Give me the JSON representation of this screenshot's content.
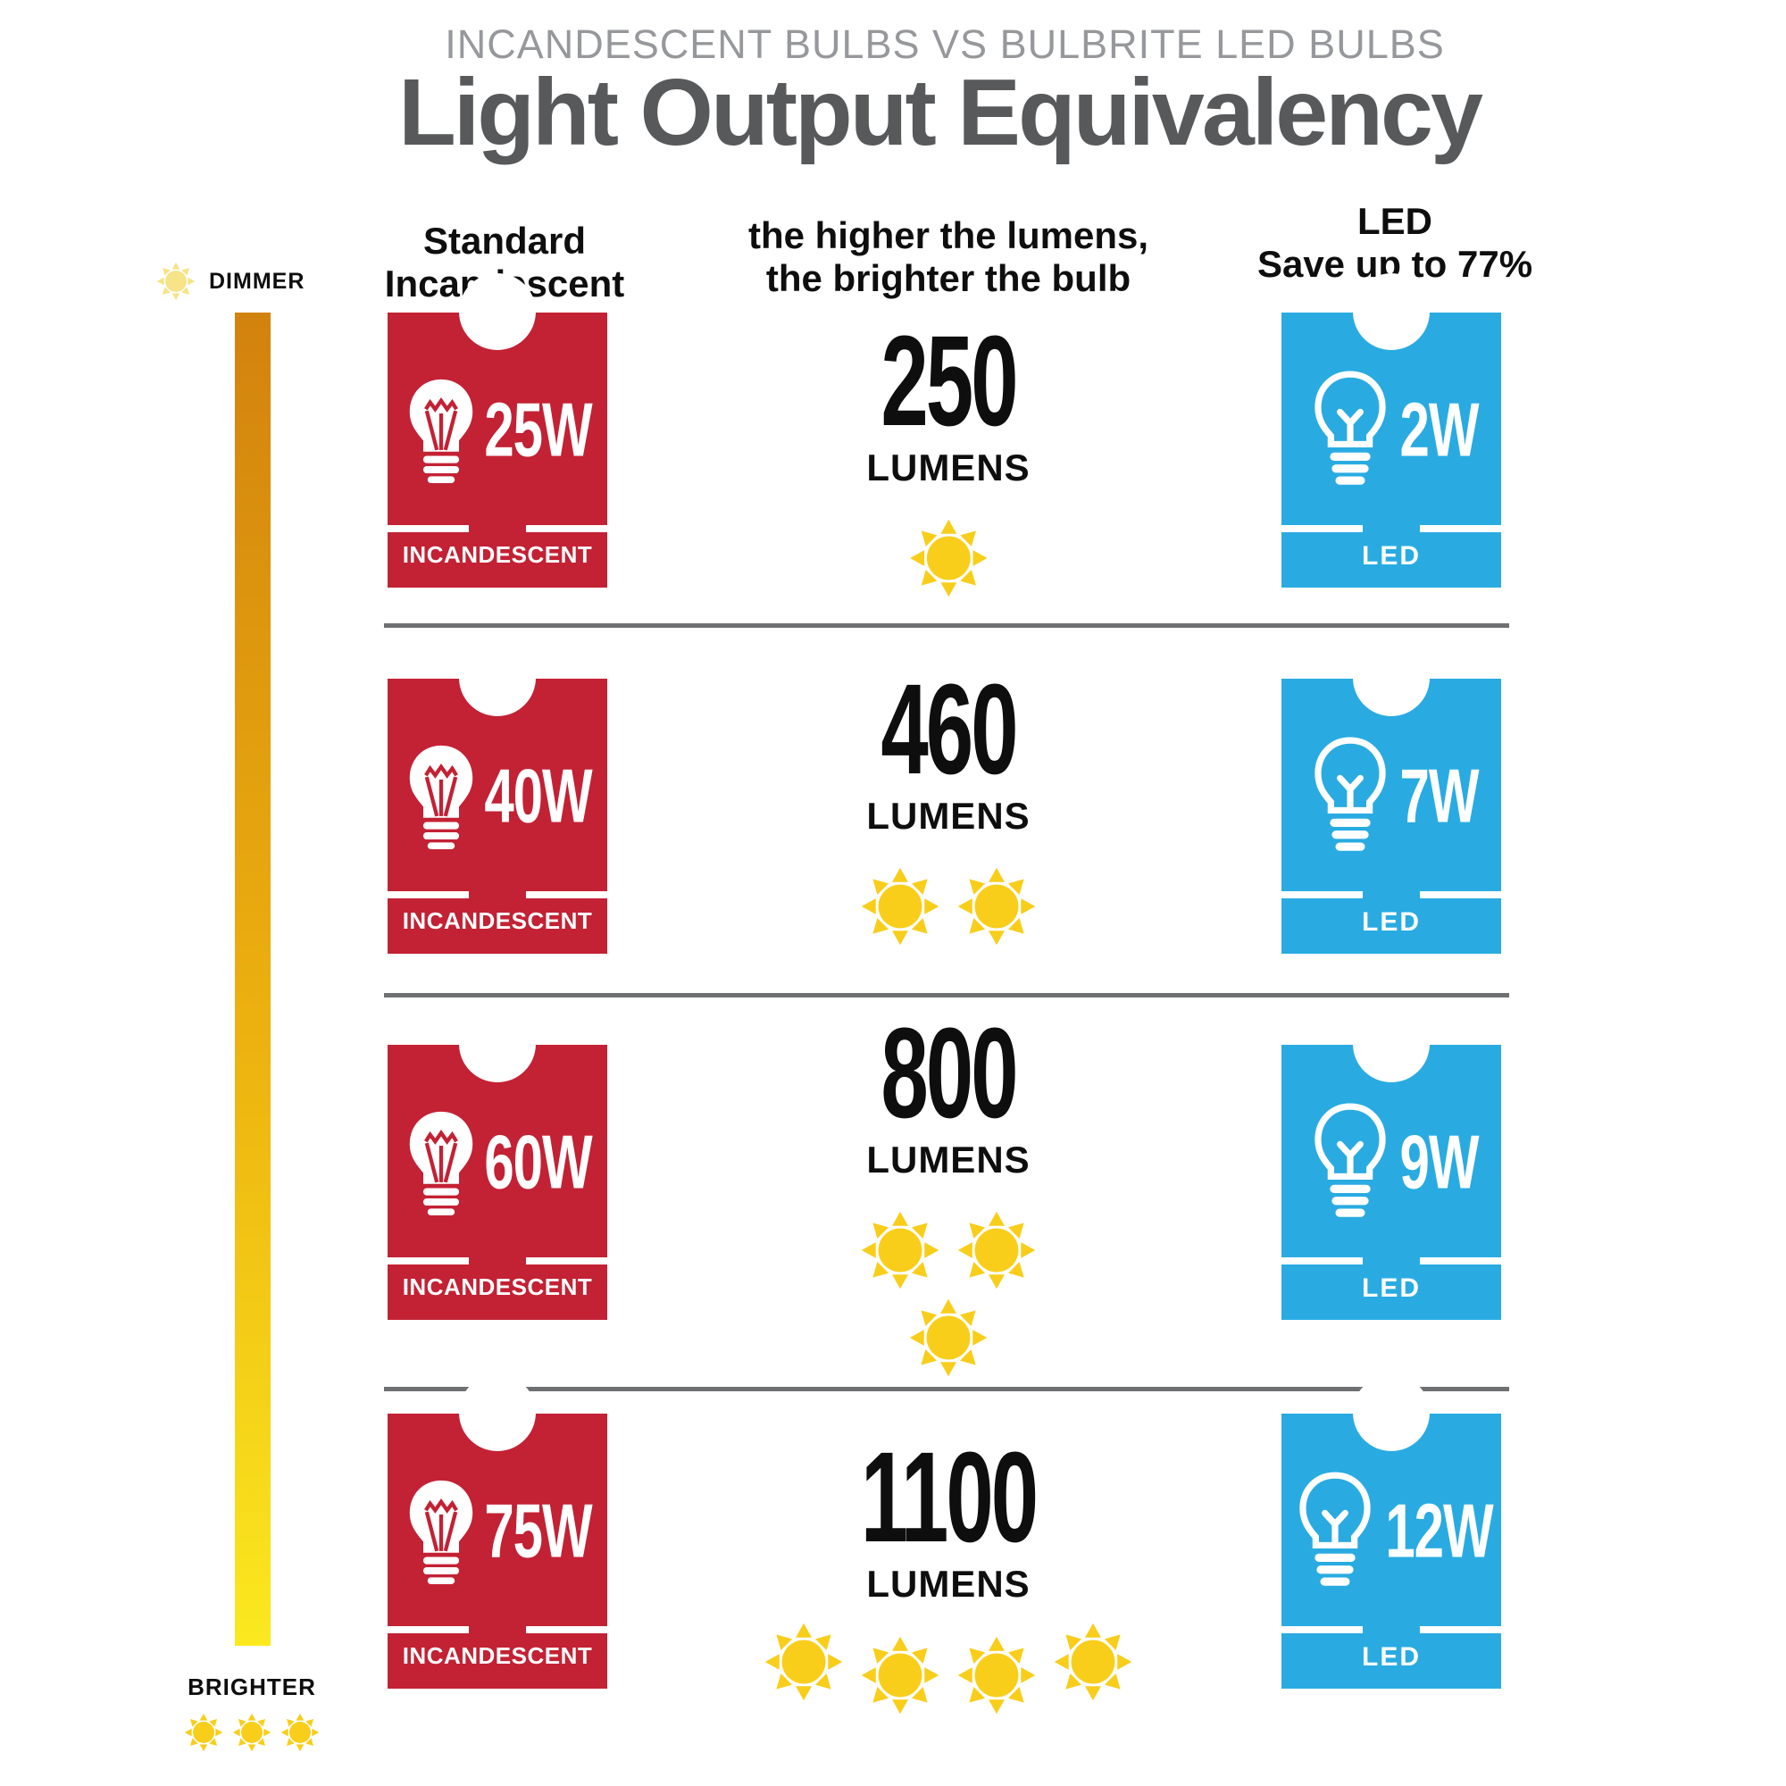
{
  "header": {
    "subtitle": "INCANDESCENT BULBS VS BULBRITE LED BULBS",
    "title": "Light Output Equivalency"
  },
  "columns": [
    {
      "lines": [
        "Standard",
        "Incandescent"
      ]
    },
    {
      "lines": [
        "the higher the lumens,",
        "the brighter the bulb"
      ]
    },
    {
      "lines": [
        "LED",
        "Save up to 77%"
      ]
    }
  ],
  "scale": {
    "dimmer_label": "DIMMER",
    "dimmer_suns": 1,
    "brighter_label": "BRIGHTER",
    "brighter_suns": 3
  },
  "rows": [
    {
      "inc_watt": "25W",
      "inc_label": "INCANDESCENT",
      "lumens": "250",
      "lumens_unit": "LUMENS",
      "suns": 1,
      "led_watt": "2W",
      "led_label": "LED"
    },
    {
      "inc_watt": "40W",
      "inc_label": "INCANDESCENT",
      "lumens": "460",
      "lumens_unit": "LUMENS",
      "suns": 2,
      "led_watt": "7W",
      "led_label": "LED"
    },
    {
      "inc_watt": "60W",
      "inc_label": "INCANDESCENT",
      "lumens": "800",
      "lumens_unit": "LUMENS",
      "suns": 3,
      "led_watt": "9W",
      "led_label": "LED"
    },
    {
      "inc_watt": "75W",
      "inc_label": "INCANDESCENT",
      "lumens": "1100",
      "lumens_unit": "LUMENS",
      "suns": 4,
      "led_watt": "12W",
      "led_label": "LED"
    }
  ],
  "colors": {
    "red": "#C32134",
    "blue": "#29ABE2",
    "sun": "#F8CE1B",
    "sun_pale": "#F7E388",
    "title_gray": "#58595B",
    "subtitle_gray": "#96989B",
    "separator": "#6F7071",
    "grad_top": "#D2820E",
    "grad_mid": "#EDB20F",
    "grad_bottom": "#FBE91F",
    "ink": "#0E0E0E"
  },
  "chart_data": {
    "type": "table",
    "title": "Light Output Equivalency",
    "subtitle": "INCANDESCENT BULBS VS BULBRITE LED BULBS",
    "columns": [
      "Standard Incandescent (W)",
      "Lumens",
      "Bulbrite LED (W)"
    ],
    "rows_values": [
      [
        25,
        250,
        2
      ],
      [
        40,
        460,
        7
      ],
      [
        60,
        800,
        9
      ],
      [
        75,
        1100,
        12
      ]
    ],
    "notes": [
      "the higher the lumens, the brighter the bulb",
      "LED Save up to 77%",
      "scale: DIMMER (top) to BRIGHTER (bottom)"
    ]
  }
}
